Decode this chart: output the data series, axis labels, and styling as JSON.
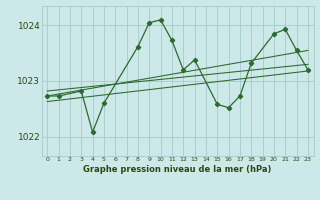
{
  "x_pts": [
    0,
    1,
    3,
    4,
    5,
    8,
    9,
    10,
    11,
    12,
    13,
    15,
    16,
    17,
    18,
    20,
    21,
    22,
    23
  ],
  "y_pts": [
    1022.73,
    1022.73,
    1022.82,
    1022.08,
    1022.6,
    1023.62,
    1024.05,
    1024.1,
    1023.73,
    1023.2,
    1023.38,
    1022.58,
    1022.52,
    1022.73,
    1023.32,
    1023.85,
    1023.93,
    1023.55,
    1023.2
  ],
  "trend_lines": [
    {
      "x": [
        0,
        23
      ],
      "y": [
        1022.73,
        1023.55
      ]
    },
    {
      "x": [
        0,
        23
      ],
      "y": [
        1022.82,
        1023.3
      ]
    },
    {
      "x": [
        0,
        23
      ],
      "y": [
        1022.63,
        1023.18
      ]
    }
  ],
  "line_color": "#2d6a2d",
  "bg_color": "#cce8e8",
  "grid_color": "#aacece",
  "text_color": "#2a4a10",
  "yticks": [
    1022,
    1023,
    1024
  ],
  "xlabel": "Graphe pression niveau de la mer (hPa)",
  "xlim": [
    -0.5,
    23.5
  ],
  "ylim": [
    1021.65,
    1024.35
  ]
}
